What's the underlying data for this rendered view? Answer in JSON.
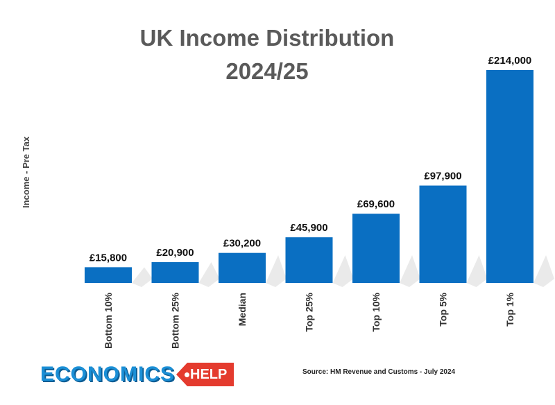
{
  "chart_data": {
    "type": "bar",
    "title": "UK Income Distribution",
    "subtitle": "2024/25",
    "xlabel": "",
    "ylabel": "Income  - Pre Tax",
    "categories": [
      "Bottom 10%",
      "Bottom 25%",
      "Median",
      "Top 25%",
      "Top 10%",
      "Top 5%",
      "Top 1%"
    ],
    "values": [
      15800,
      20900,
      30200,
      45900,
      69600,
      97900,
      214000
    ],
    "value_labels": [
      "£15,800",
      "£20,900",
      "£30,200",
      "£45,900",
      "£69,600",
      "£97,900",
      "£214,000"
    ],
    "ylim": [
      0,
      214000
    ],
    "grid": false,
    "legend": "none",
    "bar_color": "#0a6fc2",
    "shadow_color": "#d9d9d9"
  },
  "branding": {
    "logo_text": "ECONOMICS",
    "logo_tag": "HELP",
    "logo_color": "#1b8fd6",
    "tag_color": "#e43b2e"
  },
  "source_note": "Source: HM Revenue and Customs - July 2024"
}
